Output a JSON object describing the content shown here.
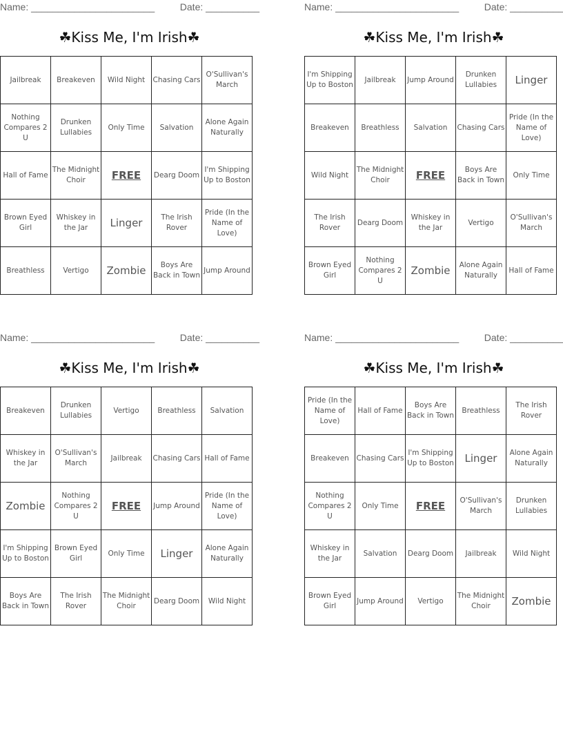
{
  "name_label": "Name: _______________________",
  "date_label": "Date: __________",
  "title": "☘Kiss Me, I'm Irish☘",
  "free_label": "FREE",
  "cards": [
    {
      "cells": [
        "Jailbreak",
        "Breakeven",
        "Wild Night",
        "Chasing Cars",
        "O'Sullivan's March",
        "Nothing Compares 2 U",
        "Drunken Lullabies",
        "Only Time",
        "Salvation",
        "Alone Again Naturally",
        "Hall of Fame",
        "The Midnight Choir",
        "FREE",
        "Dearg Doom",
        "I'm Shipping Up to Boston",
        "Brown Eyed Girl",
        "Whiskey in the Jar",
        "Linger",
        "The Irish Rover",
        "Pride (In the Name of Love)",
        "Breathless",
        "Vertigo",
        "Zombie",
        "Boys Are Back in Town",
        "Jump Around"
      ]
    },
    {
      "cells": [
        "I'm Shipping Up to Boston",
        "Jailbreak",
        "Jump Around",
        "Drunken Lullabies",
        "Linger",
        "Breakeven",
        "Breathless",
        "Salvation",
        "Chasing Cars",
        "Pride (In the Name of Love)",
        "Wild Night",
        "The Midnight Choir",
        "FREE",
        "Boys Are Back in Town",
        "Only Time",
        "The Irish Rover",
        "Dearg Doom",
        "Whiskey in the Jar",
        "Vertigo",
        "O'Sullivan's March",
        "Brown Eyed Girl",
        "Nothing Compares 2 U",
        "Zombie",
        "Alone Again Naturally",
        "Hall of Fame"
      ]
    },
    {
      "cells": [
        "Breakeven",
        "Drunken Lullabies",
        "Vertigo",
        "Breathless",
        "Salvation",
        "Whiskey in the Jar",
        "O'Sullivan's March",
        "Jailbreak",
        "Chasing Cars",
        "Hall of Fame",
        "Zombie",
        "Nothing Compares 2 U",
        "FREE",
        "Jump Around",
        "Pride (In the Name of Love)",
        "I'm Shipping Up to Boston",
        "Brown Eyed Girl",
        "Only Time",
        "Linger",
        "Alone Again Naturally",
        "Boys Are Back in Town",
        "The Irish Rover",
        "The Midnight Choir",
        "Dearg Doom",
        "Wild Night"
      ]
    },
    {
      "cells": [
        "Pride (In the Name of Love)",
        "Hall of Fame",
        "Boys Are Back in Town",
        "Breathless",
        "The Irish Rover",
        "Breakeven",
        "Chasing Cars",
        "I'm Shipping Up to Boston",
        "Linger",
        "Alone Again Naturally",
        "Nothing Compares 2 U",
        "Only Time",
        "FREE",
        "O'Sullivan's March",
        "Drunken Lullabies",
        "Whiskey in the Jar",
        "Salvation",
        "Dearg Doom",
        "Jailbreak",
        "Wild Night",
        "Brown Eyed Girl",
        "Jump Around",
        "Vertigo",
        "The Midnight Choir",
        "Zombie"
      ]
    }
  ]
}
